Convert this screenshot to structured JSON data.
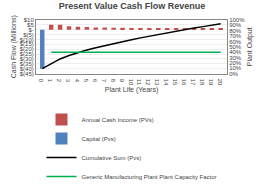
{
  "chart_data": {
    "type": "bar",
    "title": "Present Value Cash Flow Revenue",
    "x_label": "Plant Life (Years)",
    "y_label": "Cash Flow (Millions)",
    "y2_label": "Plant Output",
    "series": [
      {
        "name": "Annual Cash Income (PVs)",
        "type": "bar",
        "color": "#c0504d",
        "x": [
          1,
          2,
          3,
          4,
          5,
          6,
          7,
          8,
          9,
          10,
          11,
          12,
          13,
          14,
          15,
          16,
          17,
          18,
          19,
          20
        ],
        "values": [
          5.0,
          5.0,
          3.5,
          3.0,
          2.7,
          2.4,
          2.2,
          2.1,
          2.0,
          1.9,
          1.85,
          1.8,
          1.75,
          1.7,
          1.65,
          1.6,
          1.55,
          1.5,
          1.45,
          1.4
        ]
      },
      {
        "name": "Capital (Pvs)",
        "type": "bar",
        "color": "#4f81bd",
        "x": [
          0
        ],
        "values": [
          -40
        ]
      },
      {
        "name": "Cumulative Sum (Pvs)",
        "type": "line",
        "color": "#000000",
        "x": [
          0,
          1,
          2,
          3,
          4,
          5,
          6,
          7,
          8,
          9,
          10,
          11,
          12,
          13,
          14,
          15,
          16,
          17,
          18,
          19,
          20
        ],
        "values": [
          -40.0,
          -35.0,
          -30.0,
          -26.5,
          -23.5,
          -20.8,
          -18.4,
          -16.2,
          -14.1,
          -12.1,
          -10.2,
          -8.35,
          -6.55,
          -4.8,
          -3.1,
          -1.45,
          0.15,
          1.7,
          3.2,
          4.65,
          6.05
        ]
      },
      {
        "name": "Generic Manufacturing Plant Plant Capacity Factor",
        "type": "line",
        "color": "#00b050",
        "axis": "y2",
        "x": [
          1,
          20
        ],
        "values": [
          40,
          40
        ]
      }
    ],
    "xlim": [
      -0.7,
      20.7
    ],
    "xticks": [
      0,
      1,
      2,
      3,
      4,
      5,
      6,
      7,
      8,
      9,
      10,
      11,
      12,
      13,
      14,
      15,
      16,
      17,
      18,
      19,
      20
    ],
    "ylim": [
      -45,
      10
    ],
    "yticks": [
      {
        "value": 10,
        "label": "$10"
      },
      {
        "value": 5,
        "label": "$5"
      },
      {
        "value": 0,
        "label": "$-"
      },
      {
        "value": -5,
        "label": "$(5)"
      },
      {
        "value": -10,
        "label": "$(10)"
      },
      {
        "value": -15,
        "label": "$(15)"
      },
      {
        "value": -20,
        "label": "$(20)"
      },
      {
        "value": -25,
        "label": "$(25)"
      },
      {
        "value": -30,
        "label": "$(30)"
      },
      {
        "value": -35,
        "label": "$(35)"
      },
      {
        "value": -40,
        "label": "$(40)"
      },
      {
        "value": -45,
        "label": "$(45)"
      }
    ],
    "y2lim": [
      0,
      100
    ],
    "y2ticks": [
      {
        "value": 0,
        "label": "0%"
      },
      {
        "value": 10,
        "label": "10%"
      },
      {
        "value": 20,
        "label": "20%"
      },
      {
        "value": 30,
        "label": "30%"
      },
      {
        "value": 40,
        "label": "40%"
      },
      {
        "value": 50,
        "label": "50%"
      },
      {
        "value": 60,
        "label": "60%"
      },
      {
        "value": 70,
        "label": "70%"
      },
      {
        "value": 80,
        "label": "80%"
      },
      {
        "value": 90,
        "label": "90%"
      },
      {
        "value": 100,
        "label": "100%"
      }
    ],
    "grid": true,
    "legend": "bottom"
  }
}
